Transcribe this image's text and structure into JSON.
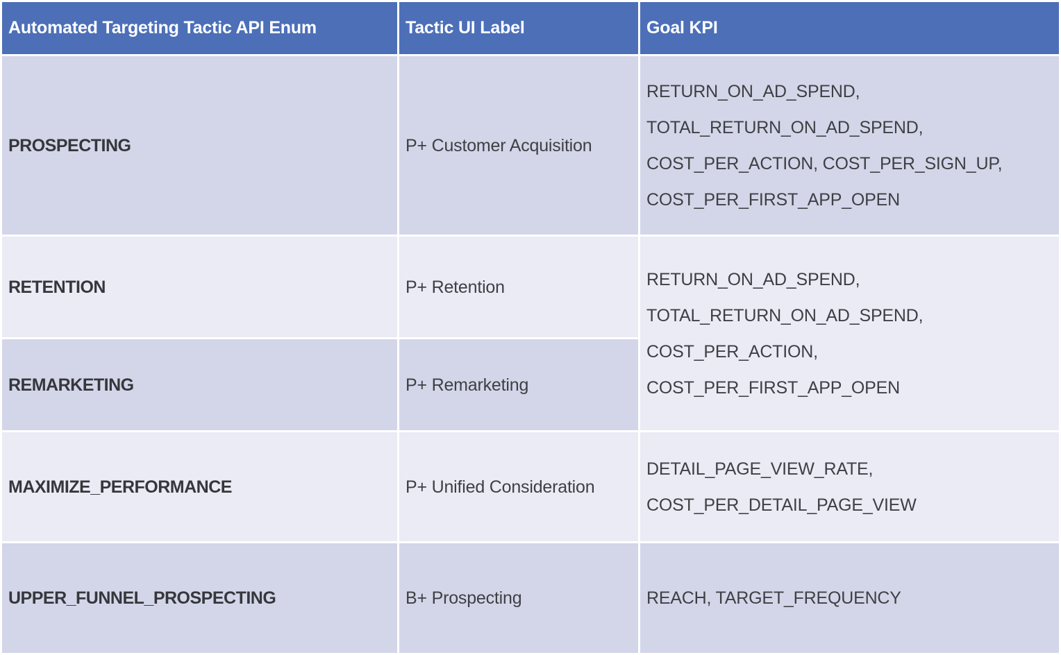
{
  "colors": {
    "header_bg": "#4c6fb8",
    "header_text": "#ffffff",
    "row_dark": "#d3d6e8",
    "row_light": "#eaebf4",
    "enum_text": "#35373c",
    "body_text": "#3e4045"
  },
  "table": {
    "headers": [
      "Automated Targeting Tactic API Enum",
      "Tactic UI Label",
      "Goal KPI"
    ],
    "rows": [
      {
        "api_enum": "PROSPECTING",
        "ui_label": "P+ Customer Acquisition",
        "goal_kpi": "RETURN_ON_AD_SPEND,\nTOTAL_RETURN_ON_AD_SPEND,\nCOST_PER_ACTION, COST_PER_SIGN_UP,\nCOST_PER_FIRST_APP_OPEN"
      },
      {
        "api_enum": "RETENTION",
        "ui_label": "P+ Retention",
        "goal_kpi": "RETURN_ON_AD_SPEND,\nTOTAL_RETURN_ON_AD_SPEND,\nCOST_PER_ACTION,\nCOST_PER_FIRST_APP_OPEN"
      },
      {
        "api_enum": "REMARKETING",
        "ui_label": "P+ Remarketing"
      },
      {
        "api_enum": "MAXIMIZE_PERFORMANCE",
        "ui_label": "P+ Unified Consideration",
        "goal_kpi": "DETAIL_PAGE_VIEW_RATE,\nCOST_PER_DETAIL_PAGE_VIEW"
      },
      {
        "api_enum": "UPPER_FUNNEL_PROSPECTING",
        "ui_label": "B+ Prospecting",
        "goal_kpi": "REACH, TARGET_FREQUENCY"
      }
    ]
  }
}
